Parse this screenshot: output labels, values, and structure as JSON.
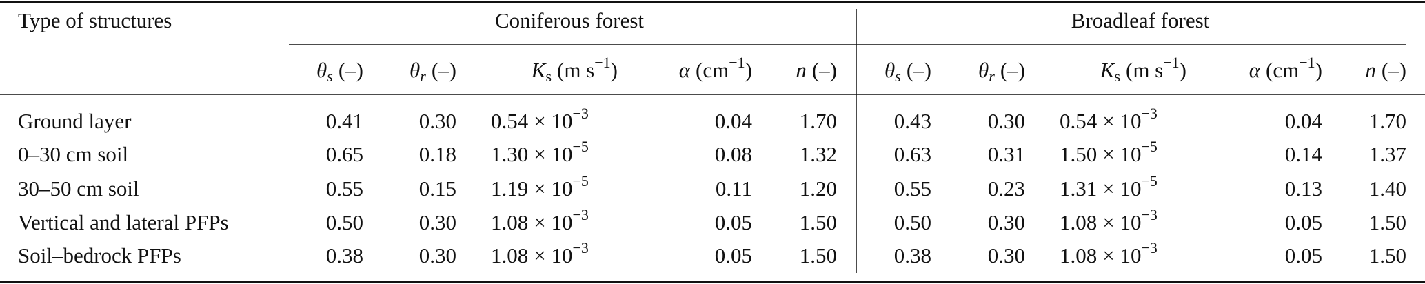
{
  "header": {
    "row_label": "Type of structures",
    "groups": [
      "Coniferous forest",
      "Broadleaf forest"
    ]
  },
  "columns": [
    {
      "symbol": "θ",
      "sub": "s",
      "unit": "(–)"
    },
    {
      "symbol": "θ",
      "sub": "r",
      "unit": "(–)"
    },
    {
      "symbol": "K",
      "sub": "s",
      "unit": "(m s",
      "sup": "−1",
      "close": ")"
    },
    {
      "symbol": "α",
      "unit": "(cm",
      "sup": "−1",
      "close": ")"
    },
    {
      "symbol": "n",
      "unit": "(–)"
    }
  ],
  "rows": [
    {
      "label": "Ground layer",
      "cells": [
        "0.41",
        "0.30",
        {
          "mantissa": "0.54",
          "times": "× 10",
          "exp": "−3"
        },
        "0.04",
        "1.70",
        "0.43",
        "0.30",
        {
          "mantissa": "0.54",
          "times": "× 10",
          "exp": "−3"
        },
        "0.04",
        "1.70"
      ]
    },
    {
      "label": "0–30 cm soil",
      "cells": [
        "0.65",
        "0.18",
        {
          "mantissa": "1.30",
          "times": "× 10",
          "exp": "−5"
        },
        "0.08",
        "1.32",
        "0.63",
        "0.31",
        {
          "mantissa": "1.50",
          "times": "× 10",
          "exp": "−5"
        },
        "0.14",
        "1.37"
      ]
    },
    {
      "label": "30–50 cm soil",
      "cells": [
        "0.55",
        "0.15",
        {
          "mantissa": "1.19",
          "times": "× 10",
          "exp": "−5"
        },
        "0.11",
        "1.20",
        "0.55",
        "0.23",
        {
          "mantissa": "1.31",
          "times": "× 10",
          "exp": "−5"
        },
        "0.13",
        "1.40"
      ]
    },
    {
      "label": "Vertical and lateral PFPs",
      "cells": [
        "0.50",
        "0.30",
        {
          "mantissa": "1.08",
          "times": "× 10",
          "exp": "−3"
        },
        "0.05",
        "1.50",
        "0.50",
        "0.30",
        {
          "mantissa": "1.08",
          "times": "× 10",
          "exp": "−3"
        },
        "0.05",
        "1.50"
      ]
    },
    {
      "label": "Soil–bedrock PFPs",
      "cells": [
        "0.38",
        "0.30",
        {
          "mantissa": "1.08",
          "times": "× 10",
          "exp": "−3"
        },
        "0.05",
        "1.50",
        "0.38",
        "0.30",
        {
          "mantissa": "1.08",
          "times": "× 10",
          "exp": "−3"
        },
        "0.05",
        "1.50"
      ]
    }
  ]
}
